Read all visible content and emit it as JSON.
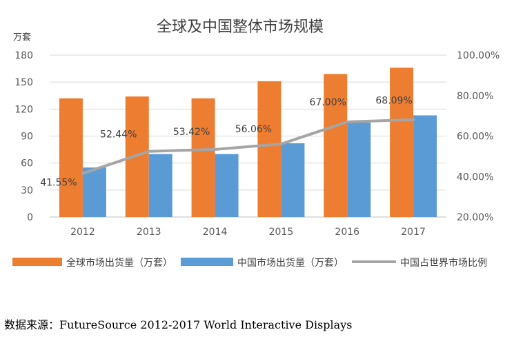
{
  "chart_data": {
    "type": "bar",
    "title": "全球及中国整体市场规模",
    "ylabel": "万套",
    "categories": [
      "2012",
      "2013",
      "2014",
      "2015",
      "2016",
      "2017"
    ],
    "ylim": [
      0,
      180
    ],
    "yticks": [
      "0",
      "30",
      "60",
      "90",
      "120",
      "150",
      "180"
    ],
    "y2lim": [
      20,
      100
    ],
    "y2ticks": [
      "20.00%",
      "40.00%",
      "60.00%",
      "80.00%",
      "100.00%"
    ],
    "series": [
      {
        "name": "全球市场出货量（万套）",
        "type": "bar",
        "axis": "left",
        "color": "#ED7D31",
        "values": [
          132,
          134,
          132,
          151,
          159,
          166
        ]
      },
      {
        "name": "中国市场出货量（万套）",
        "type": "bar",
        "axis": "left",
        "color": "#5B9BD5",
        "values": [
          55,
          70,
          70,
          82,
          105,
          113
        ]
      },
      {
        "name": "中国占世界市场比例",
        "type": "line",
        "axis": "right",
        "color": "#A5A5A5",
        "values": [
          41.55,
          52.44,
          53.42,
          56.06,
          67.0,
          68.09
        ],
        "labels": [
          "41.55%",
          "52.44%",
          "53.42%",
          "56.06%",
          "67.00%",
          "68.09%"
        ]
      }
    ],
    "grid": true,
    "legend": "bottom"
  },
  "source": "数据来源：FutureSource 2012-2017 World Interactive Displays"
}
